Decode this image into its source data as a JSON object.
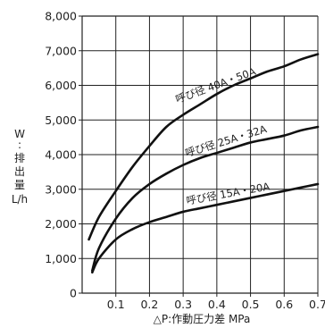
{
  "chart_data": {
    "type": "line",
    "xlabel": "△P:作動圧力差 MPa",
    "ylabel_lines": [
      "W",
      ":",
      "排",
      "出",
      "量",
      "L/h"
    ],
    "xlim": [
      0,
      0.7
    ],
    "ylim": [
      0,
      8000
    ],
    "x_ticks": [
      0.1,
      0.2,
      0.3,
      0.4,
      0.5,
      0.6,
      0.7
    ],
    "x_tick_labels": [
      "0.1",
      "0.2",
      "0.3",
      "0.4",
      "0.5",
      "0.6",
      "0.7"
    ],
    "y_ticks": [
      0,
      1000,
      2000,
      3000,
      4000,
      5000,
      6000,
      7000,
      8000
    ],
    "y_tick_labels": [
      "0",
      "1,000",
      "2,000",
      "3,000",
      "4,000",
      "5,000",
      "6,000",
      "7,000",
      "8,000"
    ],
    "grid": true,
    "series": [
      {
        "name": "呼び径 40A・50A",
        "x": [
          0.02,
          0.05,
          0.1,
          0.15,
          0.2,
          0.25,
          0.3,
          0.35,
          0.4,
          0.45,
          0.5,
          0.55,
          0.6,
          0.65,
          0.7
        ],
        "y": [
          1550,
          2200,
          2950,
          3650,
          4250,
          4800,
          5150,
          5450,
          5750,
          6000,
          6200,
          6400,
          6550,
          6750,
          6900
        ]
      },
      {
        "name": "呼び径 25A・32A",
        "x": [
          0.03,
          0.05,
          0.1,
          0.15,
          0.2,
          0.25,
          0.3,
          0.35,
          0.4,
          0.45,
          0.5,
          0.55,
          0.6,
          0.65,
          0.7
        ],
        "y": [
          650,
          1300,
          2150,
          2750,
          3150,
          3450,
          3700,
          3900,
          4050,
          4200,
          4350,
          4450,
          4550,
          4700,
          4800
        ]
      },
      {
        "name": "呼び径 15A・20A",
        "x": [
          0.03,
          0.05,
          0.1,
          0.15,
          0.2,
          0.25,
          0.3,
          0.35,
          0.4,
          0.45,
          0.5,
          0.55,
          0.6,
          0.65,
          0.7
        ],
        "y": [
          600,
          1000,
          1550,
          1850,
          2050,
          2200,
          2350,
          2450,
          2550,
          2650,
          2750,
          2850,
          2950,
          3050,
          3150
        ]
      }
    ]
  }
}
